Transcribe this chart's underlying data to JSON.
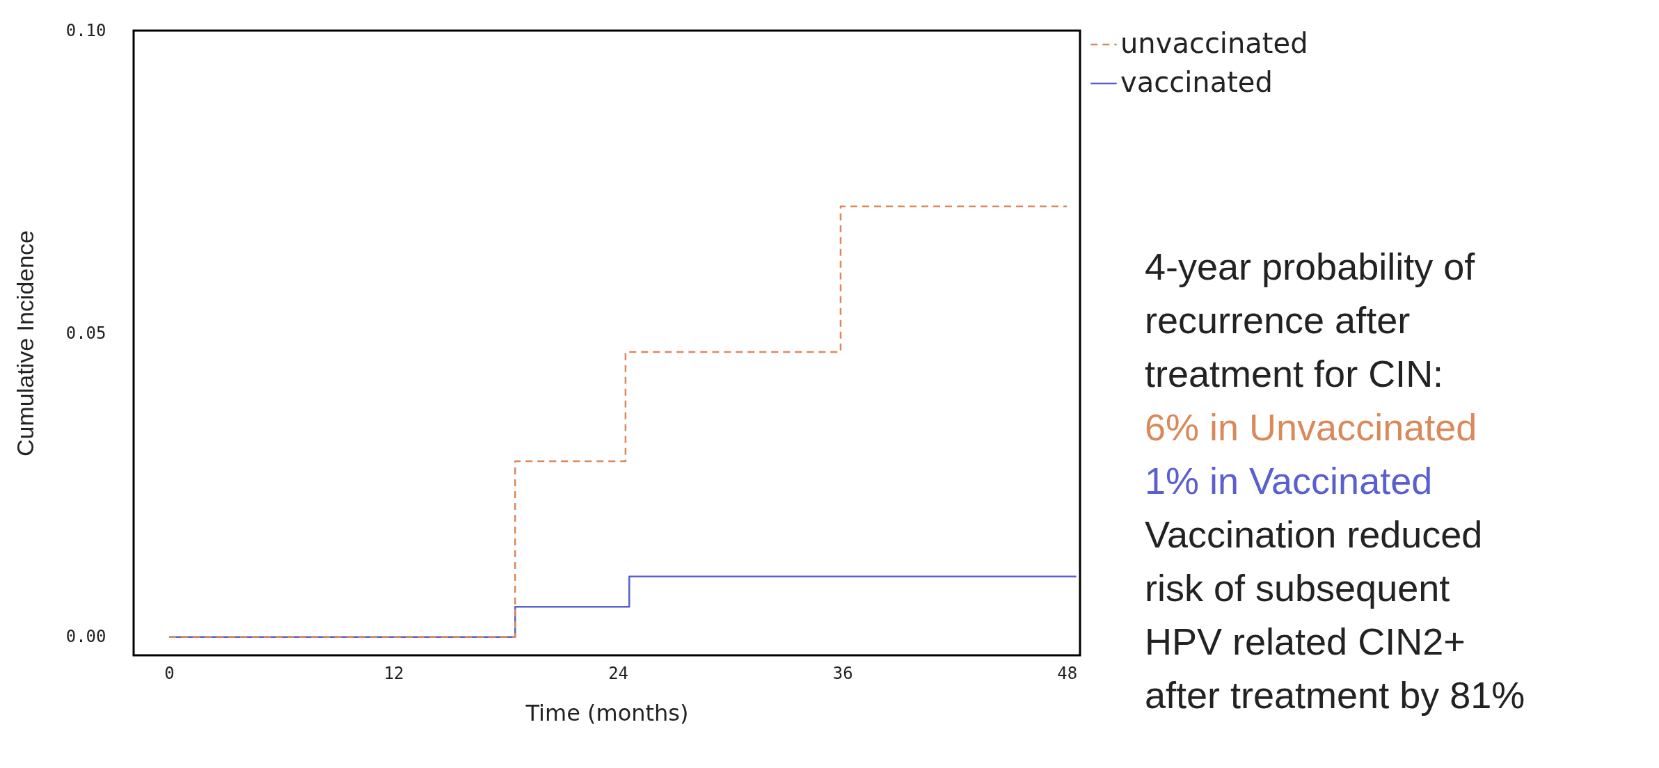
{
  "chart_data": {
    "type": "step",
    "xlabel": "Time (months)",
    "ylabel": "Cumulative Incidence",
    "xlim": [
      -1.9,
      48.7
    ],
    "xticks": [
      0,
      12,
      24,
      36,
      48
    ],
    "ylim": [
      -0.003,
      0.1
    ],
    "yticks": [
      {
        "value": 0,
        "label": "0.00"
      },
      0.05,
      {
        "value": 0.1,
        "label": "0.10"
      }
    ],
    "series": [
      {
        "name": "unvaccinated",
        "color": "#d9895a",
        "line_style": "dashed",
        "x": [
          0,
          18.5,
          24.4,
          35.9,
          48
        ],
        "values": [
          0,
          0.029,
          0.047,
          0.071,
          0.071
        ]
      },
      {
        "name": "vaccinated",
        "color": "#5a5fd0",
        "line_style": "solid",
        "x": [
          0,
          18.5,
          24.6,
          48.5
        ],
        "values": [
          0,
          0.005,
          0.01,
          0.01
        ]
      }
    ],
    "legend": "top right",
    "grid": false,
    "annotations": [
      "4-year probability of recurrence after treatment for CIN:",
      "6% in Unvaccinated",
      "1% in Vaccinated",
      "Vaccination reduced risk of subsequent HPV related CIN2+ after treatment by 81%"
    ]
  }
}
